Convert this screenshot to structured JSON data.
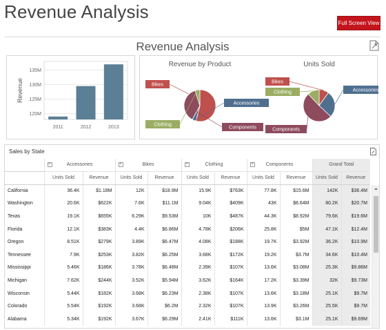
{
  "page": {
    "title": "Revenue Analysis",
    "fullscreen_label": "Full Screen View"
  },
  "dashboard": {
    "title": "Revenue Analysis"
  },
  "chart_data": [
    {
      "type": "bar",
      "categories": [
        "2011",
        "2012",
        "2013"
      ],
      "values": [
        119,
        129.5,
        137
      ],
      "ylabel": "Revenue",
      "ytick_labels": [
        "120M",
        "125M",
        "130M",
        "135M"
      ],
      "ytick_values": [
        120,
        125,
        130,
        135
      ],
      "ylim": [
        118,
        138
      ],
      "color": "#5b7f95"
    },
    {
      "type": "pie",
      "title": "Revenue by Product",
      "slices": [
        {
          "label": "Bikes",
          "value": 54,
          "color": "#c0504d"
        },
        {
          "label": "Accessories",
          "value": 4,
          "color": "#4f6f8f"
        },
        {
          "label": "Components",
          "value": 37,
          "color": "#8e4b5e"
        },
        {
          "label": "Clothing",
          "value": 5,
          "color": "#9bad63"
        }
      ]
    },
    {
      "type": "pie",
      "title": "Units Sold",
      "slices": [
        {
          "label": "Bikes",
          "value": 10,
          "color": "#c0504d"
        },
        {
          "label": "Accessories",
          "value": 27,
          "color": "#4f6f8f"
        },
        {
          "label": "Components",
          "value": 51,
          "color": "#8e4b5e"
        },
        {
          "label": "Clothing",
          "value": 12,
          "color": "#9bad63"
        }
      ]
    }
  ],
  "grid": {
    "caption": "Sales by State",
    "groups": [
      "Accessories",
      "Bikes",
      "Clothing",
      "Components",
      "Grand Total"
    ],
    "measures": [
      "Units Sold",
      "Revenue"
    ],
    "rows": [
      {
        "state": "California",
        "values": [
          "36.4K",
          "$1.18M",
          "12K",
          "$18.9M",
          "15.9K",
          "$763K",
          "77.8K",
          "$15.6M",
          "142K",
          "$36.4M"
        ]
      },
      {
        "state": "Washington",
        "values": [
          "20.6K",
          "$622K",
          "7.6K",
          "$11.1M",
          "9.04K",
          "$409K",
          "43K",
          "$8.64M",
          "80.2K",
          "$20.7M"
        ]
      },
      {
        "state": "Texas",
        "values": [
          "19.1K",
          "$655K",
          "6.29K",
          "$9.53M",
          "10K",
          "$487K",
          "44.3K",
          "$8.92M",
          "79.6K",
          "$19.6M"
        ]
      },
      {
        "state": "Florida",
        "values": [
          "12.1K",
          "$383K",
          "4.4K",
          "$6.86M",
          "4.78K",
          "$206K",
          "25.8K",
          "$5M",
          "47.1K",
          "$12.4M"
        ]
      },
      {
        "state": "Oregon",
        "values": [
          "8.51K",
          "$279K",
          "3.89K",
          "$6.47M",
          "4.08K",
          "$188K",
          "19.7K",
          "$3.92M",
          "36.2K",
          "$10.9M"
        ]
      },
      {
        "state": "Tennessee",
        "values": [
          "7.9K",
          "$253K",
          "3.82K",
          "$6.25M",
          "3.68K",
          "$172K",
          "19.2K",
          "$3.7M",
          "34.6K",
          "$10.4M"
        ]
      },
      {
        "state": "Mississippi",
        "values": [
          "5.46K",
          "$186K",
          "3.78K",
          "$6.48M",
          "2.39K",
          "$107K",
          "13.6K",
          "$3.08M",
          "25.3K",
          "$9.86M"
        ]
      },
      {
        "state": "Michigan",
        "values": [
          "7.62K",
          "$244K",
          "3.52K",
          "$5.94M",
          "3.62K",
          "$164K",
          "17.2K",
          "$3.39M",
          "32K",
          "$9.73M"
        ]
      },
      {
        "state": "Wisconsin",
        "values": [
          "5.44K",
          "$182K",
          "3.68K",
          "$6.23M",
          "2.38K",
          "$107K",
          "13.6K",
          "$3.18M",
          "25.1K",
          "$9.7M"
        ]
      },
      {
        "state": "Colorado",
        "values": [
          "5.54K",
          "$192K",
          "3.68K",
          "$6.2M",
          "2.32K",
          "$107K",
          "13.9K",
          "$3.26M",
          "25.5K",
          "$9.7M"
        ]
      },
      {
        "state": "Alabama",
        "values": [
          "5.34K",
          "$192K",
          "3.67K",
          "$6.29M",
          "2.41K",
          "$111K",
          "13.6K",
          "$3.1M",
          "25.1K",
          "$9.69M"
        ]
      }
    ]
  }
}
